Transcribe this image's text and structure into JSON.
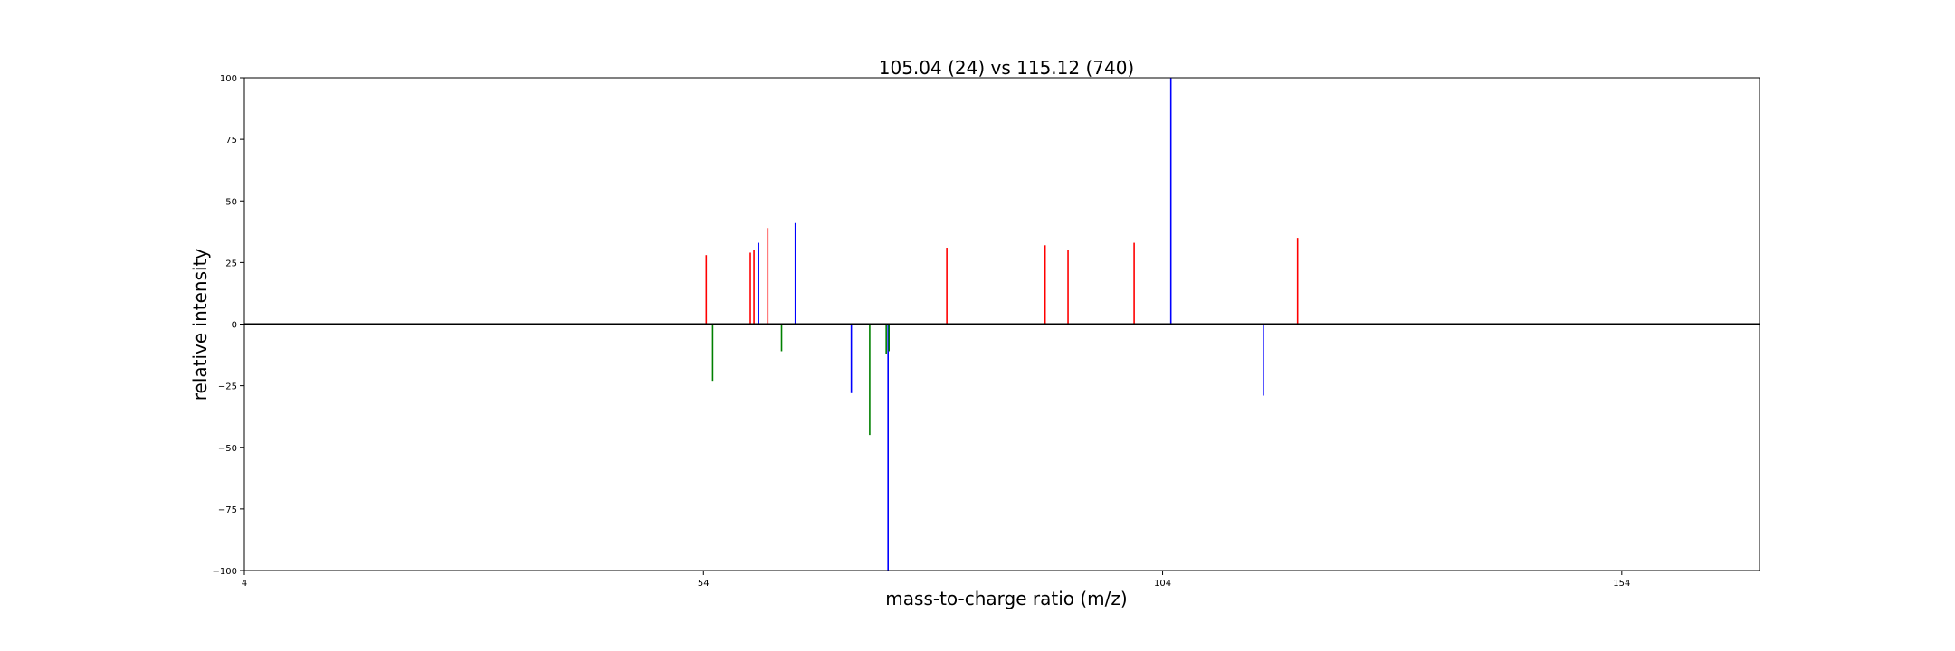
{
  "chart_data": {
    "type": "bar",
    "title": "105.04 (24) vs 115.12 (740)",
    "xlabel": "mass-to-charge ratio (m/z)",
    "ylabel": "relative intensity",
    "xlim": [
      4,
      169
    ],
    "ylim": [
      -100,
      100
    ],
    "xticks": [
      4,
      54,
      104,
      154
    ],
    "yticks": [
      -100,
      -75,
      -50,
      -25,
      0,
      25,
      50,
      75,
      100
    ],
    "grid": false,
    "colors": {
      "red": "#ff0000",
      "blue": "#0000ff",
      "green": "#008000",
      "baseline": "#000000"
    },
    "series": [
      {
        "name": "",
        "color": "red",
        "points": [
          {
            "x": 54.3,
            "y": 28
          },
          {
            "x": 59.1,
            "y": 29
          },
          {
            "x": 59.5,
            "y": 30
          },
          {
            "x": 61.0,
            "y": 39
          },
          {
            "x": 80.5,
            "y": 31
          },
          {
            "x": 91.2,
            "y": 32
          },
          {
            "x": 93.7,
            "y": 30
          },
          {
            "x": 100.9,
            "y": 33
          },
          {
            "x": 118.7,
            "y": 35
          }
        ]
      },
      {
        "name": "",
        "color": "blue",
        "points": [
          {
            "x": 60.0,
            "y": 33
          },
          {
            "x": 64.0,
            "y": 41
          },
          {
            "x": 104.9,
            "y": 100
          },
          {
            "x": 70.1,
            "y": -28
          },
          {
            "x": 74.1,
            "y": -100
          },
          {
            "x": 115.0,
            "y": -29
          }
        ]
      },
      {
        "name": "",
        "color": "green",
        "points": [
          {
            "x": 55.0,
            "y": -23
          },
          {
            "x": 62.5,
            "y": -11
          },
          {
            "x": 72.1,
            "y": -45
          },
          {
            "x": 73.9,
            "y": -12
          },
          {
            "x": 74.2,
            "y": -11
          }
        ]
      }
    ]
  }
}
